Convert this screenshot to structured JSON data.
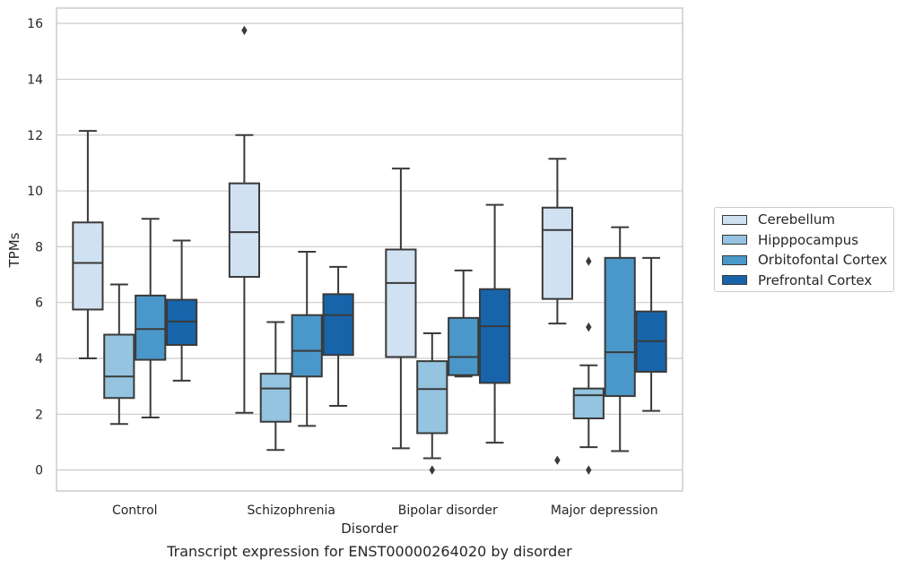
{
  "chart_data": {
    "type": "boxplot",
    "title": "",
    "caption": "Transcript expression for ENST00000264020 by disorder",
    "xlabel": "Disorder",
    "ylabel": "TPMs",
    "ylim": [
      -0.75,
      16.55
    ],
    "yticks": [
      "0",
      "2",
      "4",
      "6",
      "8",
      "10",
      "12",
      "14",
      "16"
    ],
    "grid": true,
    "legend_position": "right",
    "categories": [
      "Control",
      "Schizophrenia",
      "Bipolar disorder",
      "Major depression"
    ],
    "series": [
      {
        "name": "Cerebellum",
        "color": "#d0e1f2",
        "boxes": [
          {
            "min": 4.0,
            "q1": 5.75,
            "median": 7.42,
            "q3": 8.87,
            "max": 12.15,
            "outliers": []
          },
          {
            "min": 2.05,
            "q1": 6.92,
            "median": 8.52,
            "q3": 10.27,
            "max": 12.0,
            "outliers": [
              15.75
            ]
          },
          {
            "min": 0.78,
            "q1": 4.05,
            "median": 6.7,
            "q3": 7.9,
            "max": 10.8,
            "outliers": []
          },
          {
            "min": 5.25,
            "q1": 6.13,
            "median": 8.6,
            "q3": 9.4,
            "max": 11.15,
            "outliers": [
              0.35
            ]
          }
        ]
      },
      {
        "name": "Hipppocampus",
        "color": "#94c4df",
        "boxes": [
          {
            "min": 1.65,
            "q1": 2.58,
            "median": 3.35,
            "q3": 4.85,
            "max": 6.65,
            "outliers": []
          },
          {
            "min": 0.72,
            "q1": 1.73,
            "median": 2.92,
            "q3": 3.45,
            "max": 5.3,
            "outliers": []
          },
          {
            "min": 0.42,
            "q1": 1.32,
            "median": 2.9,
            "q3": 3.9,
            "max": 4.9,
            "outliers": [
              0.0
            ]
          },
          {
            "min": 0.82,
            "q1": 1.85,
            "median": 2.68,
            "q3": 2.92,
            "max": 3.75,
            "outliers": [
              5.12,
              7.48,
              0.0
            ]
          }
        ]
      },
      {
        "name": "Orbitofontal Cortex",
        "color": "#4a98c9",
        "boxes": [
          {
            "min": 1.88,
            "q1": 3.95,
            "median": 5.05,
            "q3": 6.25,
            "max": 9.0,
            "outliers": []
          },
          {
            "min": 1.58,
            "q1": 3.35,
            "median": 4.27,
            "q3": 5.55,
            "max": 7.82,
            "outliers": []
          },
          {
            "min": 3.35,
            "q1": 3.4,
            "median": 4.05,
            "q3": 5.45,
            "max": 7.15,
            "outliers": []
          },
          {
            "min": 0.68,
            "q1": 2.65,
            "median": 4.22,
            "q3": 7.6,
            "max": 8.7,
            "outliers": []
          }
        ]
      },
      {
        "name": "Prefrontal Cortex",
        "color": "#1764ab",
        "boxes": [
          {
            "min": 3.2,
            "q1": 4.48,
            "median": 5.32,
            "q3": 6.1,
            "max": 8.22,
            "outliers": []
          },
          {
            "min": 2.3,
            "q1": 4.12,
            "median": 5.55,
            "q3": 6.3,
            "max": 7.28,
            "outliers": []
          },
          {
            "min": 0.98,
            "q1": 3.12,
            "median": 5.15,
            "q3": 6.48,
            "max": 9.5,
            "outliers": []
          },
          {
            "min": 2.12,
            "q1": 3.52,
            "median": 4.62,
            "q3": 5.68,
            "max": 7.6,
            "outliers": []
          }
        ]
      }
    ]
  }
}
